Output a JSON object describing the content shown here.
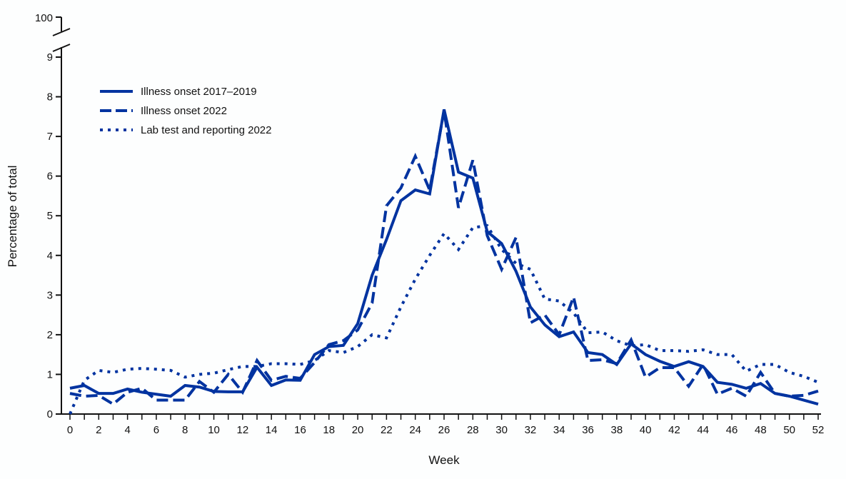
{
  "chart_data": {
    "type": "line",
    "title": "",
    "xlabel": "Week",
    "ylabel": "Percentage of total",
    "xlim": [
      0,
      52
    ],
    "ylim": [
      0,
      9
    ],
    "y_break_top_label": "100",
    "x_ticks": [
      0,
      2,
      4,
      6,
      8,
      10,
      12,
      14,
      16,
      18,
      20,
      22,
      24,
      26,
      28,
      30,
      32,
      34,
      36,
      38,
      40,
      42,
      44,
      46,
      48,
      50,
      52
    ],
    "y_ticks": [
      0,
      1,
      2,
      3,
      4,
      5,
      6,
      7,
      8,
      9
    ],
    "grid": false,
    "legend_position": "top-left",
    "color": "#0033a0",
    "x": [
      0,
      1,
      2,
      3,
      4,
      5,
      6,
      7,
      8,
      9,
      10,
      11,
      12,
      13,
      14,
      15,
      16,
      17,
      18,
      19,
      20,
      21,
      22,
      23,
      24,
      25,
      26,
      27,
      28,
      29,
      30,
      31,
      32,
      33,
      34,
      35,
      36,
      37,
      38,
      39,
      40,
      41,
      42,
      43,
      44,
      45,
      46,
      47,
      48,
      49,
      50,
      51,
      52
    ],
    "series": [
      {
        "name": "Illness onset 2017–2019",
        "style": "solid",
        "values": [
          0.65,
          0.72,
          0.52,
          0.52,
          0.63,
          0.55,
          0.5,
          0.45,
          0.72,
          0.68,
          0.57,
          0.56,
          0.56,
          1.18,
          0.72,
          0.86,
          0.85,
          1.5,
          1.7,
          1.73,
          2.28,
          3.5,
          4.4,
          5.38,
          5.65,
          5.55,
          7.68,
          6.1,
          5.95,
          4.6,
          4.3,
          3.6,
          2.7,
          2.25,
          1.95,
          2.07,
          1.55,
          1.5,
          1.25,
          1.77,
          1.5,
          1.33,
          1.2,
          1.32,
          1.2,
          0.8,
          0.75,
          0.65,
          0.77,
          0.52,
          0.45,
          0.35,
          0.25
        ]
      },
      {
        "name": "Illness onset 2022",
        "style": "dashed",
        "values": [
          0.52,
          0.45,
          0.47,
          0.25,
          0.55,
          0.65,
          0.35,
          0.35,
          0.35,
          0.82,
          0.55,
          1.0,
          0.55,
          1.35,
          0.85,
          0.95,
          0.9,
          1.3,
          1.75,
          1.85,
          2.12,
          2.8,
          5.25,
          5.7,
          6.5,
          5.65,
          7.65,
          5.2,
          6.4,
          4.5,
          3.65,
          4.45,
          2.3,
          2.5,
          2.0,
          2.95,
          1.35,
          1.37,
          1.27,
          1.87,
          0.93,
          1.17,
          1.17,
          0.7,
          1.25,
          0.5,
          0.65,
          0.45,
          1.05,
          0.52,
          0.45,
          0.47,
          0.58
        ]
      },
      {
        "name": "Lab test and reporting 2022",
        "style": "dotted",
        "values": [
          0,
          0.85,
          1.1,
          1.05,
          1.13,
          1.15,
          1.13,
          1.1,
          0.93,
          1.0,
          1.03,
          1.12,
          1.2,
          1.2,
          1.27,
          1.27,
          1.25,
          1.35,
          1.6,
          1.55,
          1.7,
          2.0,
          1.92,
          2.7,
          3.4,
          4.0,
          4.55,
          4.15,
          4.7,
          4.75,
          4.15,
          3.8,
          3.65,
          2.9,
          2.85,
          2.55,
          2.05,
          2.07,
          1.85,
          1.72,
          1.75,
          1.6,
          1.6,
          1.58,
          1.62,
          1.5,
          1.5,
          1.08,
          1.25,
          1.25,
          1.05,
          0.95,
          0.8
        ]
      }
    ]
  }
}
